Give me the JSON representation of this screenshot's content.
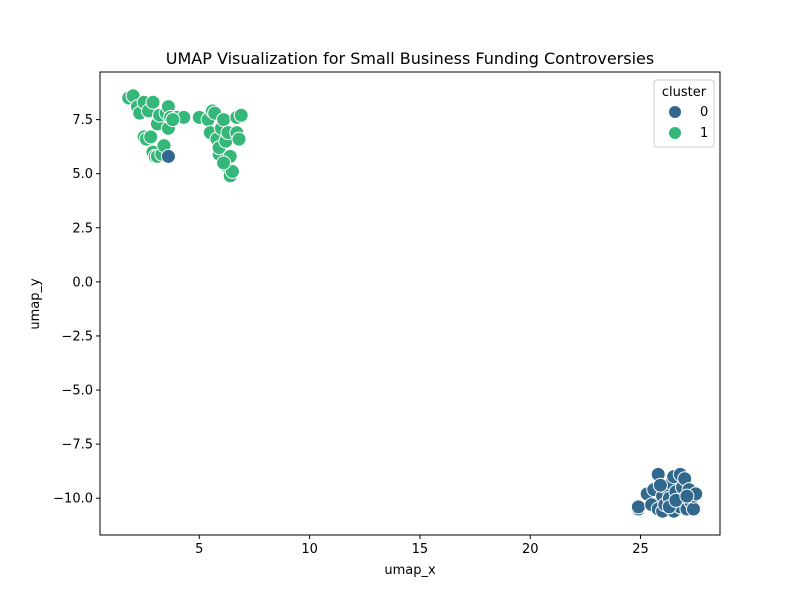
{
  "chart_data": {
    "type": "scatter",
    "title": "UMAP Visualization for Small Business Funding Controversies",
    "xlabel": "umap_x",
    "ylabel": "umap_y",
    "xlim": [
      0.5,
      28.6
    ],
    "ylim": [
      -11.7,
      9.7
    ],
    "x_ticks": [
      5,
      10,
      15,
      20,
      25
    ],
    "x_tick_labels": [
      "5",
      "10",
      "15",
      "20",
      "25"
    ],
    "y_ticks": [
      -10.0,
      -7.5,
      -5.0,
      -2.5,
      0.0,
      2.5,
      5.0,
      7.5
    ],
    "y_tick_labels": [
      "−10.0",
      "−7.5",
      "−5.0",
      "−2.5",
      "0.0",
      "2.5",
      "5.0",
      "7.5"
    ],
    "grid": false,
    "legend": {
      "title": "cluster",
      "placement": "top-right",
      "entries": [
        "0",
        "1"
      ]
    },
    "series": [
      {
        "name": "0",
        "color": "#31688e",
        "points": [
          [
            3.6,
            5.8
          ],
          [
            24.9,
            -10.5
          ],
          [
            24.9,
            -10.4
          ],
          [
            25.3,
            -9.8
          ],
          [
            25.5,
            -10.3
          ],
          [
            25.6,
            -9.6
          ],
          [
            25.8,
            -8.9
          ],
          [
            25.8,
            -10.5
          ],
          [
            26.0,
            -10.6
          ],
          [
            26.0,
            -9.9
          ],
          [
            26.1,
            -10.3
          ],
          [
            26.2,
            -9.5
          ],
          [
            26.3,
            -10.0
          ],
          [
            26.4,
            -9.3
          ],
          [
            26.5,
            -9.0
          ],
          [
            26.5,
            -10.6
          ],
          [
            26.6,
            -9.7
          ],
          [
            26.7,
            -10.2
          ],
          [
            26.8,
            -8.9
          ],
          [
            26.8,
            -10.4
          ],
          [
            26.9,
            -9.5
          ],
          [
            27.0,
            -9.1
          ],
          [
            27.0,
            -10.0
          ],
          [
            27.1,
            -10.5
          ],
          [
            27.2,
            -9.6
          ],
          [
            27.3,
            -10.2
          ],
          [
            27.4,
            -10.5
          ],
          [
            27.4,
            -9.9
          ],
          [
            27.5,
            -9.8
          ],
          [
            25.9,
            -9.4
          ],
          [
            26.3,
            -10.4
          ],
          [
            26.6,
            -10.1
          ],
          [
            27.1,
            -9.9
          ]
        ]
      },
      {
        "name": "1",
        "color": "#35b779",
        "points": [
          [
            1.8,
            8.5
          ],
          [
            2.0,
            8.6
          ],
          [
            2.2,
            8.1
          ],
          [
            2.3,
            7.8
          ],
          [
            2.5,
            8.3
          ],
          [
            2.5,
            6.7
          ],
          [
            2.6,
            6.6
          ],
          [
            2.7,
            7.9
          ],
          [
            2.8,
            6.7
          ],
          [
            2.9,
            8.3
          ],
          [
            2.9,
            6.0
          ],
          [
            3.0,
            5.8
          ],
          [
            3.1,
            7.3
          ],
          [
            3.1,
            5.8
          ],
          [
            3.2,
            7.7
          ],
          [
            3.3,
            5.9
          ],
          [
            3.4,
            6.3
          ],
          [
            3.5,
            7.8
          ],
          [
            3.6,
            8.1
          ],
          [
            3.6,
            7.1
          ],
          [
            3.7,
            7.6
          ],
          [
            4.0,
            7.6
          ],
          [
            4.3,
            7.6
          ],
          [
            5.0,
            7.6
          ],
          [
            5.4,
            7.5
          ],
          [
            5.5,
            6.9
          ],
          [
            5.6,
            7.9
          ],
          [
            5.7,
            7.8
          ],
          [
            5.8,
            6.6
          ],
          [
            5.9,
            5.9
          ],
          [
            5.9,
            6.2
          ],
          [
            6.0,
            7.1
          ],
          [
            6.1,
            7.5
          ],
          [
            6.2,
            5.4
          ],
          [
            6.2,
            6.5
          ],
          [
            6.3,
            6.9
          ],
          [
            6.4,
            5.8
          ],
          [
            6.4,
            4.9
          ],
          [
            6.5,
            5.1
          ],
          [
            6.7,
            7.6
          ],
          [
            6.7,
            6.9
          ],
          [
            6.8,
            6.6
          ],
          [
            6.9,
            7.7
          ],
          [
            6.1,
            5.5
          ],
          [
            3.8,
            7.5
          ]
        ]
      }
    ]
  }
}
